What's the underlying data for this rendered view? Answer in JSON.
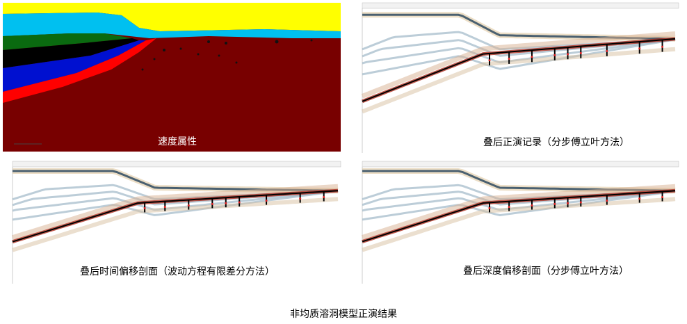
{
  "panels": [
    {
      "caption": "速度属性"
    },
    {
      "caption": "叠后正演记录（分步傅立叶方法）"
    },
    {
      "caption": "叠后时间偏移剖面（波动方程有限差分方法）"
    },
    {
      "caption": "叠后深度偏移剖面（分步傅立叶方法）"
    }
  ],
  "figure_caption": "非均质溶洞模型正演结果"
}
